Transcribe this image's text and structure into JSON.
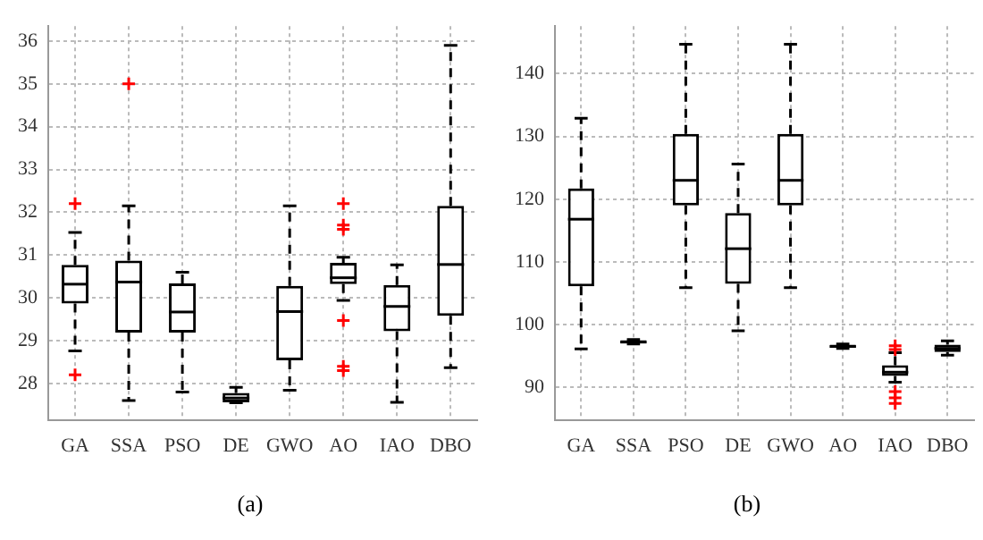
{
  "chart_data": [
    {
      "type": "box",
      "categories": [
        "GA",
        "SSA",
        "PSO",
        "DE",
        "GWO",
        "AO",
        "IAO",
        "DBO"
      ],
      "ylim": [
        27.15,
        36.35
      ],
      "yticks": [
        28,
        29,
        30,
        31,
        32,
        33,
        34,
        35,
        36
      ],
      "grid": true,
      "marker": "cross",
      "annotations": [
        "(a)"
      ],
      "series": [
        {
          "color": "#000000",
          "boxes": [
            {
              "low": 28.76,
              "q1": 29.87,
              "median": 30.32,
              "q3": 30.77,
              "high": 31.53,
              "outliers": [
                32.2,
                28.2
              ]
            },
            {
              "low": 27.6,
              "q1": 29.19,
              "median": 30.37,
              "q3": 30.87,
              "high": 32.15,
              "outliers": [
                35.0
              ]
            },
            {
              "low": 27.8,
              "q1": 29.19,
              "median": 29.67,
              "q3": 30.34,
              "high": 30.6
            },
            {
              "low": 27.55,
              "q1": 27.56,
              "median": 27.66,
              "q3": 27.78,
              "high": 27.91
            },
            {
              "low": 27.84,
              "q1": 28.54,
              "median": 29.68,
              "q3": 30.28,
              "high": 32.15
            },
            {
              "low": 29.94,
              "q1": 30.32,
              "median": 30.47,
              "q3": 30.82,
              "high": 30.95,
              "outliers": [
                32.2,
                31.7,
                31.6,
                29.47,
                28.4,
                28.3
              ]
            },
            {
              "low": 27.56,
              "q1": 29.22,
              "median": 29.8,
              "q3": 30.3,
              "high": 30.77
            },
            {
              "low": 28.37,
              "q1": 29.58,
              "median": 30.78,
              "q3": 32.15,
              "high": 35.9
            }
          ]
        }
      ]
    },
    {
      "type": "box",
      "categories": [
        "GA",
        "SSA",
        "PSO",
        "DE",
        "GWO",
        "AO",
        "IAO",
        "DBO"
      ],
      "ylim": [
        84.8,
        147.6
      ],
      "yticks": [
        90,
        100,
        110,
        120,
        130,
        140
      ],
      "grid": true,
      "marker": "cross",
      "annotations": [
        "(b)"
      ],
      "series": [
        {
          "color": "#000000",
          "boxes": [
            {
              "low": 96.1,
              "q1": 106.1,
              "median": 116.8,
              "q3": 121.7,
              "high": 132.9
            },
            {
              "low": 96.9,
              "q1": 97.0,
              "median": 97.2,
              "q3": 97.5,
              "high": 97.6
            },
            {
              "low": 105.9,
              "q1": 119.0,
              "median": 123.0,
              "q3": 130.4,
              "high": 144.7
            },
            {
              "low": 99.0,
              "q1": 106.5,
              "median": 112.1,
              "q3": 117.8,
              "high": 125.6
            },
            {
              "low": 105.9,
              "q1": 119.0,
              "median": 123.0,
              "q3": 130.4,
              "high": 144.7
            },
            {
              "low": 96.2,
              "q1": 96.3,
              "median": 96.5,
              "q3": 96.8,
              "high": 96.9
            },
            {
              "low": 90.8,
              "q1": 91.8,
              "median": 92.4,
              "q3": 93.5,
              "high": 95.5,
              "outliers": [
                96.6,
                96.0,
                89.3,
                88.3,
                87.4
              ]
            },
            {
              "low": 95.1,
              "q1": 95.6,
              "median": 96.2,
              "q3": 96.8,
              "high": 97.4
            }
          ]
        }
      ]
    }
  ]
}
